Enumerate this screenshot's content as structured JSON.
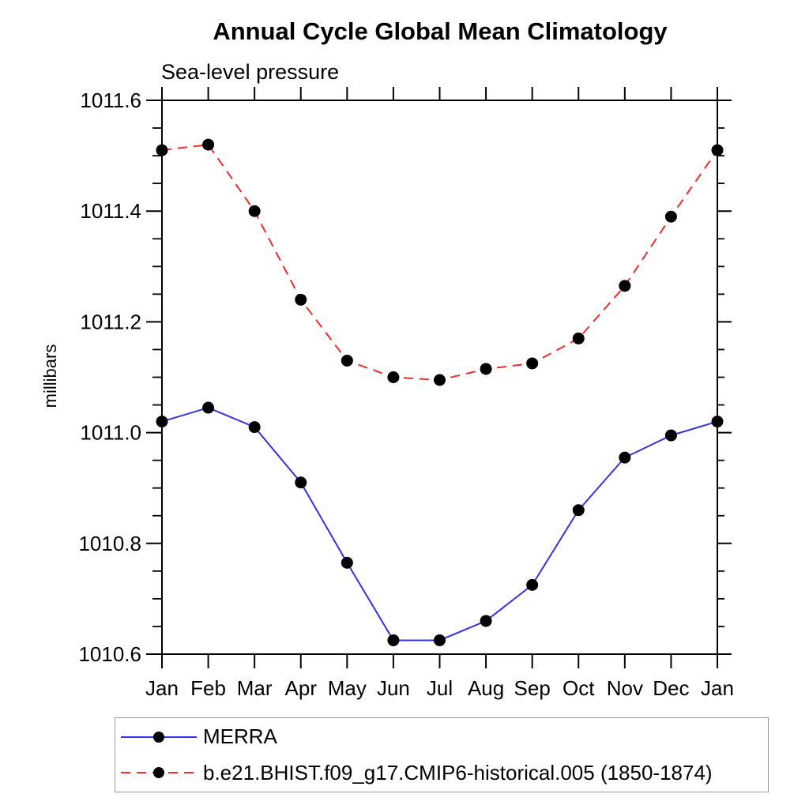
{
  "page": {
    "background": "#ffffff",
    "axis_color": "#000000",
    "legend_border_color": "#999999"
  },
  "chart_data": {
    "type": "line",
    "title": "Annual Cycle Global Mean Climatology",
    "subtitle": "Sea-level pressure",
    "ylabel": "millibars",
    "xlabel": "",
    "categories": [
      "Jan",
      "Feb",
      "Mar",
      "Apr",
      "May",
      "Jun",
      "Jul",
      "Aug",
      "Sep",
      "Oct",
      "Nov",
      "Dec",
      "Jan"
    ],
    "ylim": [
      1010.6,
      1011.6
    ],
    "ytick_labels": [
      "1010.6",
      "1010.8",
      "1011.0",
      "1011.2",
      "1011.4",
      "1011.6"
    ],
    "ytick_major_step": 0.2,
    "ytick_minor_step": 0.05,
    "grid": false,
    "legend_position": "bottom-left",
    "series": [
      {
        "name": "MERRA",
        "color": "#3232e6",
        "line_style": "solid",
        "marker": "circle",
        "marker_color": "#000000",
        "values": [
          1011.02,
          1011.045,
          1011.01,
          1010.91,
          1010.765,
          1010.625,
          1010.625,
          1010.66,
          1010.725,
          1010.86,
          1010.955,
          1010.995,
          1011.02
        ]
      },
      {
        "name": "b.e21.BHIST.f09_g17.CMIP6-historical.005 (1850-1874)",
        "color": "#ee2d2d",
        "line_style": "dashed",
        "marker": "circle",
        "marker_color": "#000000",
        "values": [
          1011.51,
          1011.52,
          1011.4,
          1011.24,
          1011.13,
          1011.1,
          1011.095,
          1011.115,
          1011.125,
          1011.17,
          1011.265,
          1011.39,
          1011.51
        ]
      }
    ]
  }
}
